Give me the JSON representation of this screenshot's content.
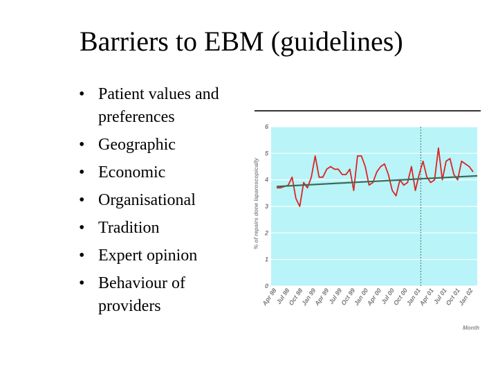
{
  "slide": {
    "title": "Barriers to EBM (guidelines)",
    "bullet_symbol": "•",
    "bullets": [
      "Patient values and preferences",
      "Geographic",
      "Economic",
      "Organisational",
      "Tradition",
      "Expert opinion",
      "Behaviour of providers"
    ]
  },
  "chart_data": {
    "type": "line",
    "ylabel": "% of repairs done laparoscopically",
    "xlabel": "Month",
    "ylim": [
      0,
      6
    ],
    "yticks": [
      0,
      1,
      2,
      3,
      4,
      5,
      6
    ],
    "x_tick_labels": [
      "Apr 98",
      "Jul 98",
      "Oct 98",
      "Jan 99",
      "Apr 99",
      "Jul 99",
      "Oct 99",
      "Jan 00",
      "Apr 00",
      "Jul 00",
      "Oct 00",
      "Jan 01",
      "Apr 01",
      "Jul 01",
      "Oct 01",
      "Jan 02"
    ],
    "grid": true,
    "background_color": "#b8f4f8",
    "series": [
      {
        "color": "#dd2222",
        "values": [
          3.7,
          3.7,
          3.75,
          3.8,
          4.1,
          3.3,
          3.0,
          3.9,
          3.7,
          4.1,
          4.9,
          4.1,
          4.1,
          4.4,
          4.5,
          4.4,
          4.4,
          4.2,
          4.2,
          4.4,
          3.6,
          4.9,
          4.9,
          4.5,
          3.8,
          3.9,
          4.3,
          4.5,
          4.6,
          4.2,
          3.6,
          3.4,
          4.0,
          3.8,
          3.9,
          4.5,
          3.6,
          4.2,
          4.7,
          4.1,
          3.9,
          4.0,
          5.2,
          4.0,
          4.7,
          4.8,
          4.2,
          4.0,
          4.7,
          4.6,
          4.5,
          4.3
        ]
      },
      {
        "color": "#3a6a55",
        "values": [
          3.75,
          4.15
        ]
      }
    ],
    "annotations": [
      {
        "type": "vertical_dashed_line",
        "x_label": "Jan 01"
      }
    ]
  }
}
